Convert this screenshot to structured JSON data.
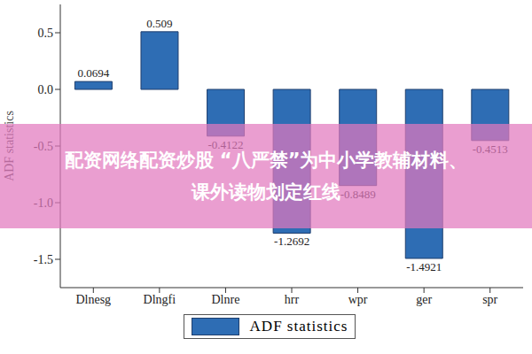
{
  "chart_data": {
    "type": "bar",
    "y_label": "ADF statistics",
    "categories": [
      "Dlnesg",
      "Dlngfi",
      "Dlnre",
      "hrr",
      "wpr",
      "ger",
      "spr"
    ],
    "series": [
      {
        "name": "ADF statistics",
        "color": "#2e6db4",
        "values": [
          0.0694,
          0.509,
          -0.4122,
          -1.2692,
          -0.8489,
          -1.4921,
          -0.4513
        ]
      }
    ],
    "ylim": [
      -1.75,
      0.75
    ],
    "yticks": [
      {
        "value": -1.5,
        "label": "-1.5"
      },
      {
        "value": -1,
        "label": "-1.0"
      },
      {
        "value": -0.5,
        "label": "-0.5"
      },
      {
        "value": 0,
        "label": "0.0"
      },
      {
        "value": 0.5,
        "label": "0.5"
      }
    ],
    "data_labels": true,
    "legend": "bottom",
    "annotation": [
      "配资网络配资炒股 “八严禁”为中小学教辅材料、",
      "课外读物划定红线"
    ]
  }
}
